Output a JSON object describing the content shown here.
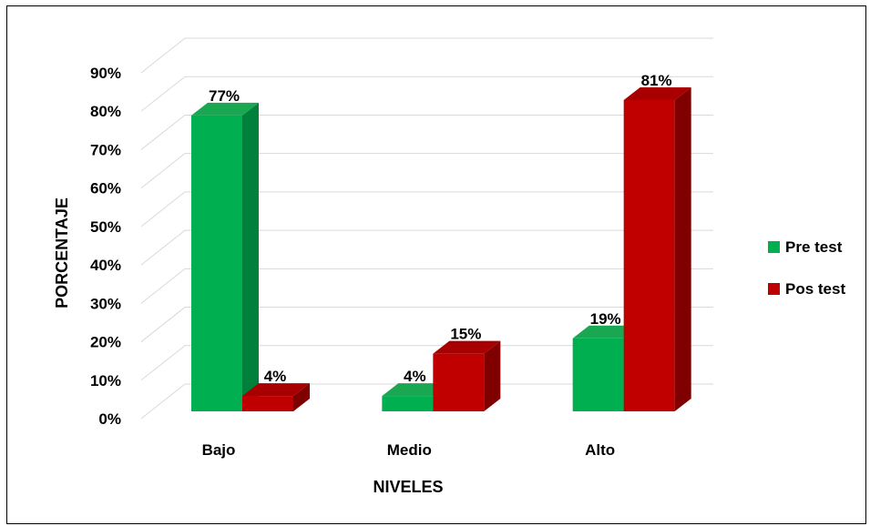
{
  "chart_data": {
    "type": "bar",
    "xlabel": "NIVELES",
    "ylabel": "PORCENTAJE",
    "categories": [
      "Bajo",
      "Medio",
      "Alto"
    ],
    "ylim": [
      0,
      90
    ],
    "yticks": [
      "0%",
      "10%",
      "20%",
      "30%",
      "40%",
      "50%",
      "60%",
      "70%",
      "80%",
      "90%"
    ],
    "grid": true,
    "legend_position": "right",
    "series": [
      {
        "name": "Pre test",
        "values": [
          77,
          4,
          19
        ],
        "labels": [
          "77%",
          "4%",
          "19%"
        ],
        "color": "#00b050",
        "side_color": "#00803a",
        "top_color": "#19a851"
      },
      {
        "name": "Pos test",
        "values": [
          4,
          15,
          81
        ],
        "labels": [
          "4%",
          "15%",
          "81%"
        ],
        "color": "#c00000",
        "side_color": "#800000",
        "top_color": "#a80000"
      }
    ]
  }
}
